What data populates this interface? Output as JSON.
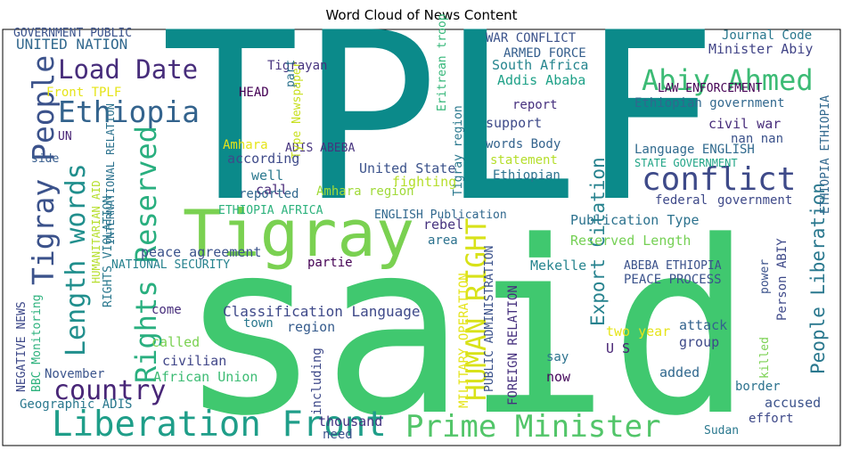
{
  "chart_data": {
    "type": "wordcloud",
    "title": "Word Cloud of News Content",
    "words": [
      {
        "text": "TPLF",
        "color": "#0b8a8a"
      },
      {
        "text": "said",
        "color": "#40c86f"
      },
      {
        "text": "Tigray",
        "color": "#7ad151"
      },
      {
        "text": "Prime Minister",
        "color": "#52c569"
      },
      {
        "text": "Liberation Front",
        "color": "#1f9e89"
      },
      {
        "text": "Abiy Ahmed",
        "color": "#3cbb75"
      },
      {
        "text": "conflict",
        "color": "#3e4a89"
      },
      {
        "text": "Load Date",
        "color": "#472d7b"
      },
      {
        "text": "Ethiopia",
        "color": "#33638d"
      },
      {
        "text": "country",
        "color": "#482677"
      },
      {
        "text": "People Liberation",
        "color": "#2a788e"
      },
      {
        "text": "Export Citation",
        "color": "#26828e"
      },
      {
        "text": "HUMAN RIGHT",
        "color": "#d8e219"
      },
      {
        "text": "Rights Reserved",
        "color": "#29af7f"
      },
      {
        "text": "Length words",
        "color": "#218f8d"
      },
      {
        "text": "Tigray People",
        "color": "#3b528b"
      },
      {
        "text": "Classification Language",
        "color": "#3e4989"
      },
      {
        "text": "Reserved Length",
        "color": "#75d054"
      },
      {
        "text": "Publication Type",
        "color": "#2c728e"
      },
      {
        "text": "ENGLISH Publication",
        "color": "#31688e"
      },
      {
        "text": "Language ENGLISH",
        "color": "#306a8e"
      },
      {
        "text": "Ethiopian government",
        "color": "#31688e"
      },
      {
        "text": "civil war",
        "color": "#472c7a"
      },
      {
        "text": "nan nan",
        "color": "#3b528b"
      },
      {
        "text": "federal",
        "color": "#3e4989"
      },
      {
        "text": "government",
        "color": "#3e4989"
      },
      {
        "text": "STATE GOVERNMENT",
        "color": "#20a486"
      },
      {
        "text": "LAW ENFORCEMENT",
        "color": "#440154"
      },
      {
        "text": "Minister Abiy",
        "color": "#414487"
      },
      {
        "text": "Journal Code",
        "color": "#2a788e"
      },
      {
        "text": "WAR CONFLICT",
        "color": "#3b528b"
      },
      {
        "text": "ARMED FORCE",
        "color": "#355f8d"
      },
      {
        "text": "South Africa",
        "color": "#25858e"
      },
      {
        "text": "Addis Ababa",
        "color": "#1fa188"
      },
      {
        "text": "report",
        "color": "#46307e"
      },
      {
        "text": "support",
        "color": "#3e4a89"
      },
      {
        "text": "words Body",
        "color": "#33638d"
      },
      {
        "text": "statement",
        "color": "#b5de2b"
      },
      {
        "text": "Ethiopian",
        "color": "#2c728e"
      },
      {
        "text": "ADIS ABEBA",
        "color": "#46337e"
      },
      {
        "text": "United State",
        "color": "#3b528b"
      },
      {
        "text": "Amhara region",
        "color": "#a0da39"
      },
      {
        "text": "fighting",
        "color": "#b5de2b"
      },
      {
        "text": "Type Newspaper",
        "color": "#c8e020"
      },
      {
        "text": "Tigray region",
        "color": "#2a788e"
      },
      {
        "text": "Eritrean troop",
        "color": "#35b779"
      },
      {
        "text": "UNITED NATION",
        "color": "#31688e"
      },
      {
        "text": "GOVERNMENT PUBLIC",
        "color": "#3b528b"
      },
      {
        "text": "Front TPLF",
        "color": "#e5e419"
      },
      {
        "text": "HEAD",
        "color": "#440154"
      },
      {
        "text": "Tigrayan",
        "color": "#46337e"
      },
      {
        "text": "part",
        "color": "#2c728e"
      },
      {
        "text": "Amhara",
        "color": "#e5e419"
      },
      {
        "text": "according",
        "color": "#3e4a89"
      },
      {
        "text": "call",
        "color": "#482878"
      },
      {
        "text": "well",
        "color": "#2a788e"
      },
      {
        "text": "reported",
        "color": "#31688e"
      },
      {
        "text": "ETHIOPIA AFRICA",
        "color": "#2db27d"
      },
      {
        "text": "NATIONAL SECURITY",
        "color": "#26828e"
      },
      {
        "text": "partie",
        "color": "#440154"
      },
      {
        "text": "region",
        "color": "#365c8d"
      },
      {
        "text": "town",
        "color": "#2a788e"
      },
      {
        "text": "come",
        "color": "#472d7b"
      },
      {
        "text": "called",
        "color": "#7ad151"
      },
      {
        "text": "civilian",
        "color": "#404688"
      },
      {
        "text": "African Union",
        "color": "#3dbc74"
      },
      {
        "text": "November",
        "color": "#3a548c"
      },
      {
        "text": "Geographic ADIS",
        "color": "#2a788e"
      },
      {
        "text": "thousand",
        "color": "#453581"
      },
      {
        "text": "need",
        "color": "#3b528b"
      },
      {
        "text": "including",
        "color": "#3e4989"
      },
      {
        "text": "MILITARY OPERATION",
        "color": "#e5e419"
      },
      {
        "text": "PUBLIC ADMINISTRATION",
        "color": "#3b528b"
      },
      {
        "text": "FOREIGN RELATION",
        "color": "#46307e"
      },
      {
        "text": "two year",
        "color": "#e5e419"
      },
      {
        "text": "U S",
        "color": "#482475"
      },
      {
        "text": "say",
        "color": "#2c728e"
      },
      {
        "text": "now",
        "color": "#46085c"
      },
      {
        "text": "attack",
        "color": "#33638d"
      },
      {
        "text": "group",
        "color": "#3e4a89"
      },
      {
        "text": "added",
        "color": "#31688e"
      },
      {
        "text": "border",
        "color": "#2c728e"
      },
      {
        "text": "accused",
        "color": "#3b528b"
      },
      {
        "text": "effort",
        "color": "#3e4989"
      },
      {
        "text": "Sudan",
        "color": "#2a788e"
      },
      {
        "text": "ABEBA ETHIOPIA",
        "color": "#3b528b"
      },
      {
        "text": "PEACE PROCESS",
        "color": "#3b528b"
      },
      {
        "text": "Mekelle",
        "color": "#25848e"
      },
      {
        "text": "rebel",
        "color": "#46337e"
      },
      {
        "text": "area",
        "color": "#2c728e"
      },
      {
        "text": "power",
        "color": "#3b528b"
      },
      {
        "text": "Person ABIY",
        "color": "#3e4989"
      },
      {
        "text": "killed",
        "color": "#7ad151"
      },
      {
        "text": "ETHIOPIA ETHIOPIA",
        "color": "#31688e"
      },
      {
        "text": "HUMANITARIAN AID",
        "color": "#b5de2b"
      },
      {
        "text": "INTERNATIONAL RELATION",
        "color": "#2c728e"
      },
      {
        "text": "RIGHTS VIOLATION",
        "color": "#2a788e"
      },
      {
        "text": "NEGATIVE NEWS",
        "color": "#3e4989"
      },
      {
        "text": "BBC Monitoring",
        "color": "#2db27d"
      },
      {
        "text": "peace agreement",
        "color": "#3b528b"
      },
      {
        "text": "UN",
        "color": "#482475"
      },
      {
        "text": "side",
        "color": "#365c8d"
      },
      {
        "text": "time",
        "color": "#2c728e"
      }
    ]
  }
}
